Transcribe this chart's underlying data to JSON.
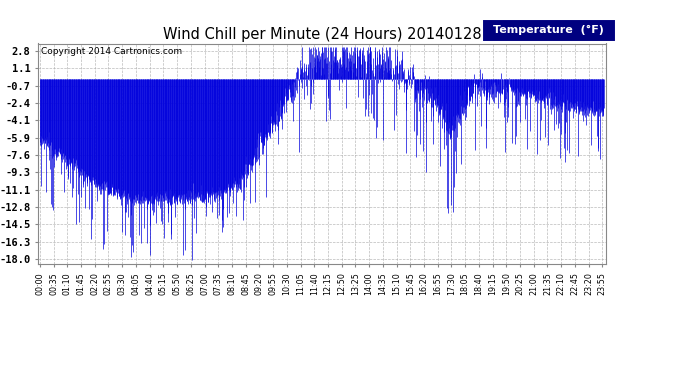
{
  "title": "Wind Chill per Minute (24 Hours) 20140128",
  "copyright": "Copyright 2014 Cartronics.com",
  "legend_label": "Temperature  (°F)",
  "yticks": [
    2.8,
    1.1,
    -0.7,
    -2.4,
    -4.1,
    -5.9,
    -7.6,
    -9.3,
    -11.1,
    -12.8,
    -14.5,
    -16.3,
    -18.0
  ],
  "ylim": [
    -18.5,
    3.5
  ],
  "bar_color": "#0000dd",
  "bg_color": "#ffffff",
  "grid_color": "#aaaaaa",
  "title_color": "#000000",
  "copyright_color": "#000000",
  "legend_bg": "#000080",
  "legend_text_color": "#ffffff",
  "tick_interval": 35
}
